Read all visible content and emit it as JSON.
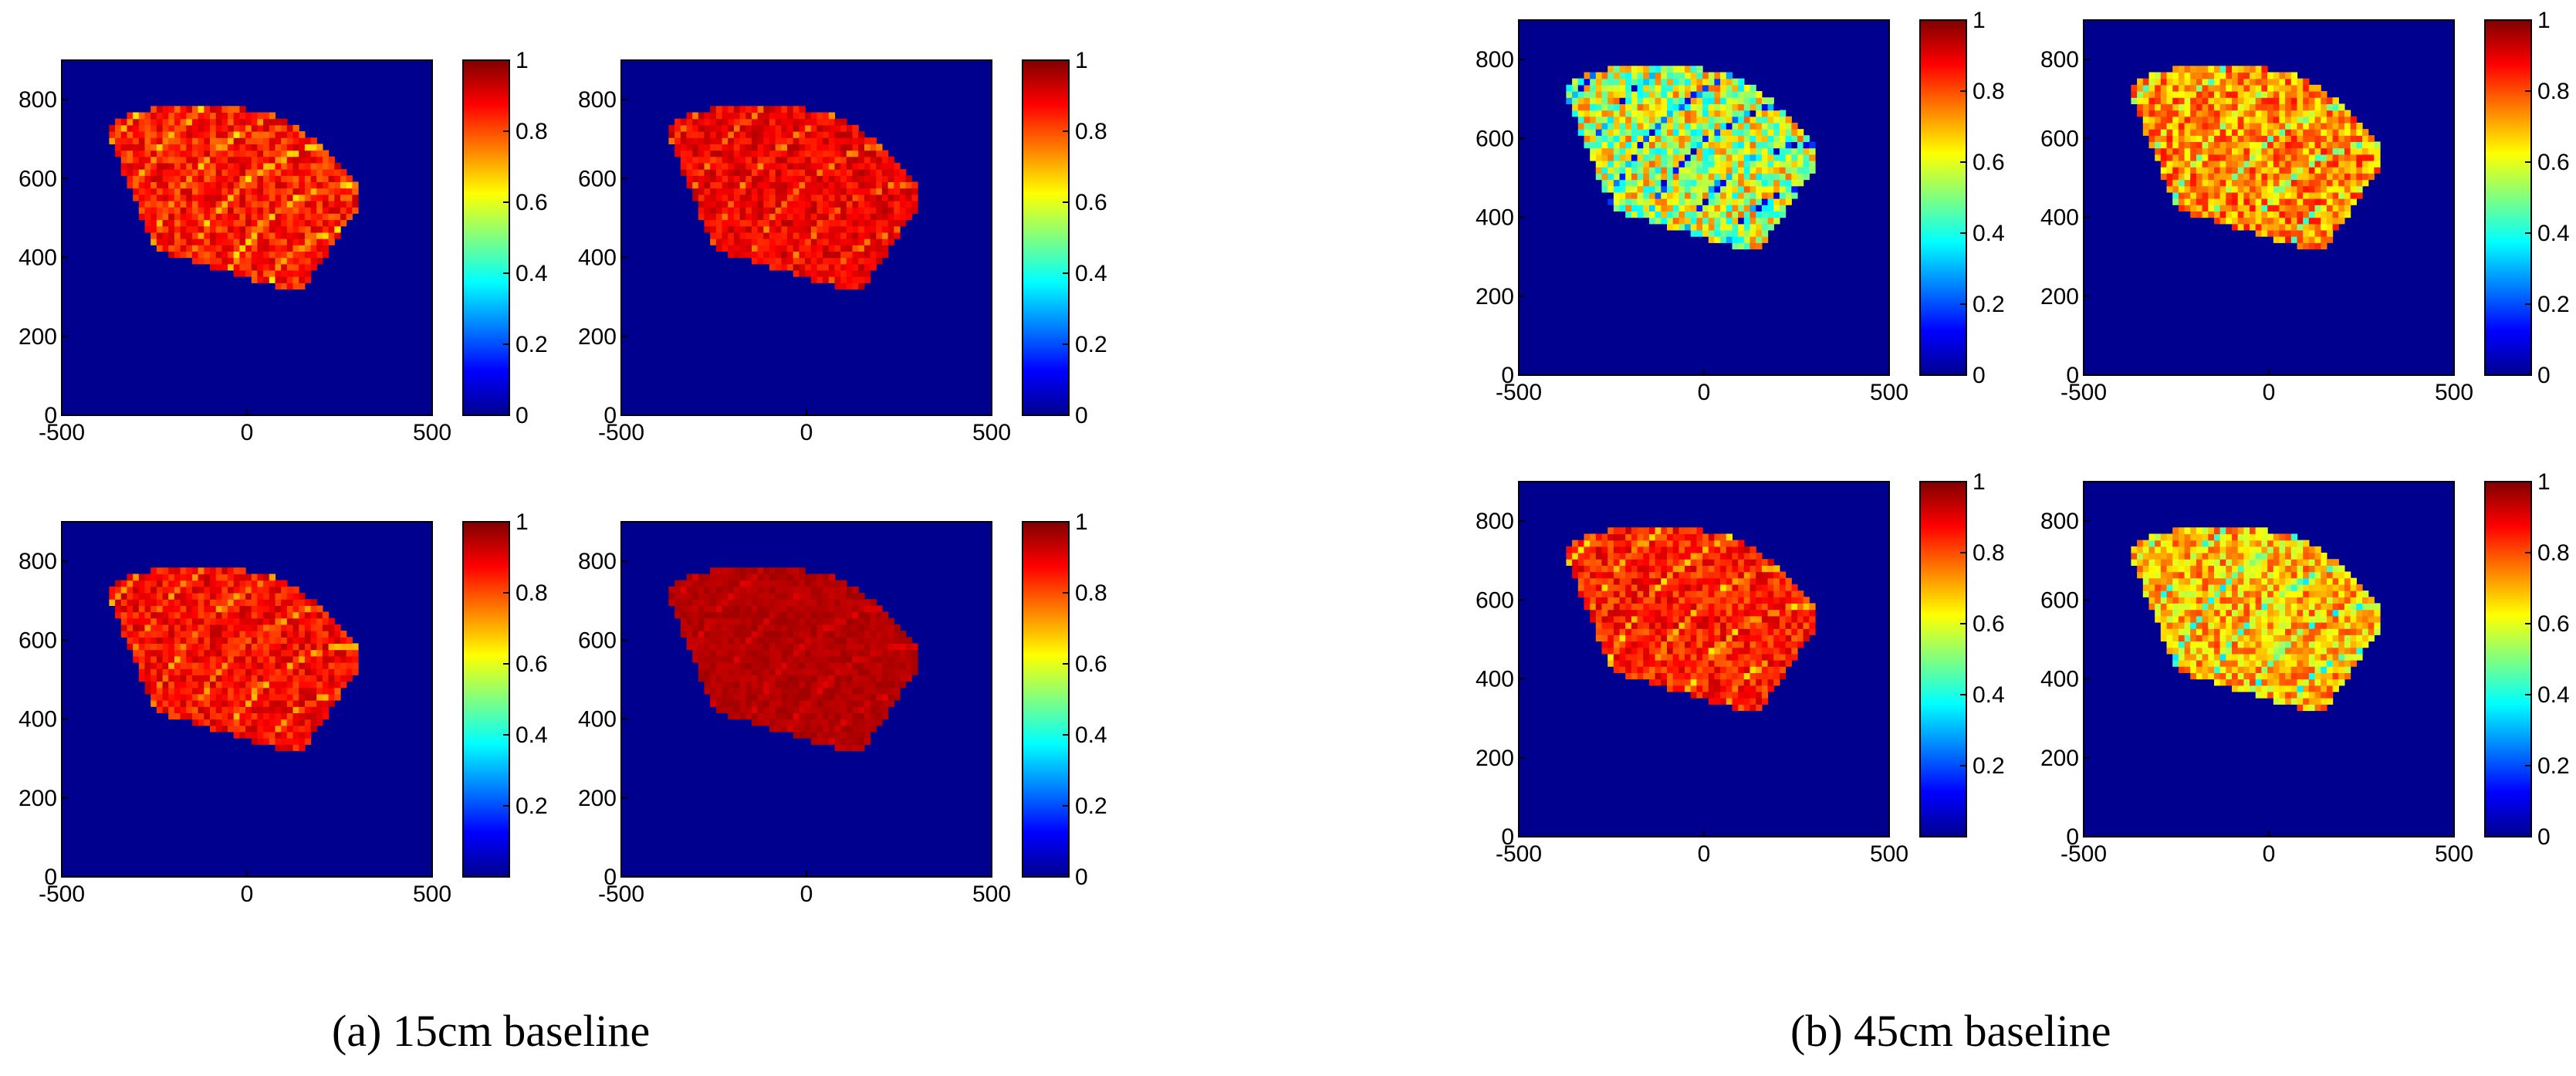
{
  "figure": {
    "colors": {
      "background": "#00008f",
      "axis": "#000000"
    },
    "colorbar_stops": [
      "#00008f",
      "#0000ff",
      "#0080ff",
      "#00ffff",
      "#80ff80",
      "#ffff00",
      "#ff8000",
      "#ff0000",
      "#800000"
    ],
    "captions": {
      "a": "(a) 15cm baseline",
      "b": "(b) 45cm baseline"
    }
  },
  "chart_data": [
    {
      "type": "heatmap",
      "group": "a",
      "row": 1,
      "col": 1,
      "x_ticks": [
        "-500",
        "0",
        "500"
      ],
      "y_ticks": [
        "0",
        "200",
        "400",
        "600",
        "800"
      ],
      "colorbar_ticks": [
        "0",
        "0.2",
        "0.4",
        "0.6",
        "0.8",
        "1"
      ],
      "xlim": [
        -500,
        500
      ],
      "ylim": [
        0,
        900
      ],
      "clim": [
        0,
        1
      ],
      "mean_value": 0.93,
      "noise": 0.16
    },
    {
      "type": "heatmap",
      "group": "a",
      "row": 1,
      "col": 2,
      "x_ticks": [
        "-500",
        "0",
        "500"
      ],
      "y_ticks": [
        "0",
        "200",
        "400",
        "600",
        "800"
      ],
      "colorbar_ticks": [
        "0",
        "0.2",
        "0.4",
        "0.6",
        "0.8",
        "1"
      ],
      "xlim": [
        -500,
        500
      ],
      "ylim": [
        0,
        900
      ],
      "clim": [
        0,
        1
      ],
      "mean_value": 0.95,
      "noise": 0.12
    },
    {
      "type": "heatmap",
      "group": "a",
      "row": 2,
      "col": 1,
      "x_ticks": [
        "-500",
        "0",
        "500"
      ],
      "y_ticks": [
        "0",
        "200",
        "400",
        "600",
        "800"
      ],
      "colorbar_ticks": [
        "0.2",
        "0.4",
        "0.6",
        "0.8",
        "1"
      ],
      "xlim": [
        -500,
        500
      ],
      "ylim": [
        0,
        900
      ],
      "clim": [
        0,
        1
      ],
      "mean_value": 0.94,
      "noise": 0.14
    },
    {
      "type": "heatmap",
      "group": "a",
      "row": 2,
      "col": 2,
      "x_ticks": [
        "-500",
        "0",
        "500"
      ],
      "y_ticks": [
        "0",
        "200",
        "400",
        "600",
        "800"
      ],
      "colorbar_ticks": [
        "0",
        "0.2",
        "0.4",
        "0.6",
        "0.8",
        "1"
      ],
      "xlim": [
        -500,
        500
      ],
      "ylim": [
        0,
        900
      ],
      "clim": [
        0,
        1
      ],
      "mean_value": 0.97,
      "noise": 0.04
    },
    {
      "type": "heatmap",
      "group": "b",
      "row": 1,
      "col": 1,
      "x_ticks": [
        "-500",
        "0",
        "500"
      ],
      "y_ticks": [
        "0",
        "200",
        "400",
        "600",
        "800"
      ],
      "colorbar_ticks": [
        "0",
        "0.2",
        "0.4",
        "0.6",
        "0.8",
        "1"
      ],
      "xlim": [
        -500,
        500
      ],
      "ylim": [
        0,
        900
      ],
      "clim": [
        0,
        1
      ],
      "mean_value": 0.78,
      "noise": 0.42
    },
    {
      "type": "heatmap",
      "group": "b",
      "row": 1,
      "col": 2,
      "x_ticks": [
        "-500",
        "0",
        "500"
      ],
      "y_ticks": [
        "0",
        "200",
        "400",
        "600",
        "800"
      ],
      "colorbar_ticks": [
        "0",
        "0.2",
        "0.4",
        "0.6",
        "0.8",
        "1"
      ],
      "xlim": [
        -500,
        500
      ],
      "ylim": [
        0,
        900
      ],
      "clim": [
        0,
        1
      ],
      "mean_value": 0.86,
      "noise": 0.24
    },
    {
      "type": "heatmap",
      "group": "b",
      "row": 2,
      "col": 1,
      "x_ticks": [
        "-500",
        "0",
        "500"
      ],
      "y_ticks": [
        "0",
        "200",
        "400",
        "600",
        "800"
      ],
      "colorbar_ticks": [
        "0.2",
        "0.4",
        "0.6",
        "0.8",
        "1"
      ],
      "xlim": [
        -500,
        500
      ],
      "ylim": [
        0,
        900
      ],
      "clim": [
        0,
        1
      ],
      "mean_value": 0.93,
      "noise": 0.16
    },
    {
      "type": "heatmap",
      "group": "b",
      "row": 2,
      "col": 2,
      "x_ticks": [
        "-500",
        "0",
        "500"
      ],
      "y_ticks": [
        "0",
        "200",
        "400",
        "600",
        "800"
      ],
      "colorbar_ticks": [
        "0",
        "0.2",
        "0.4",
        "0.6",
        "0.8",
        "1"
      ],
      "xlim": [
        -500,
        500
      ],
      "ylim": [
        0,
        900
      ],
      "clim": [
        0,
        1
      ],
      "mean_value": 0.82,
      "noise": 0.26
    }
  ]
}
